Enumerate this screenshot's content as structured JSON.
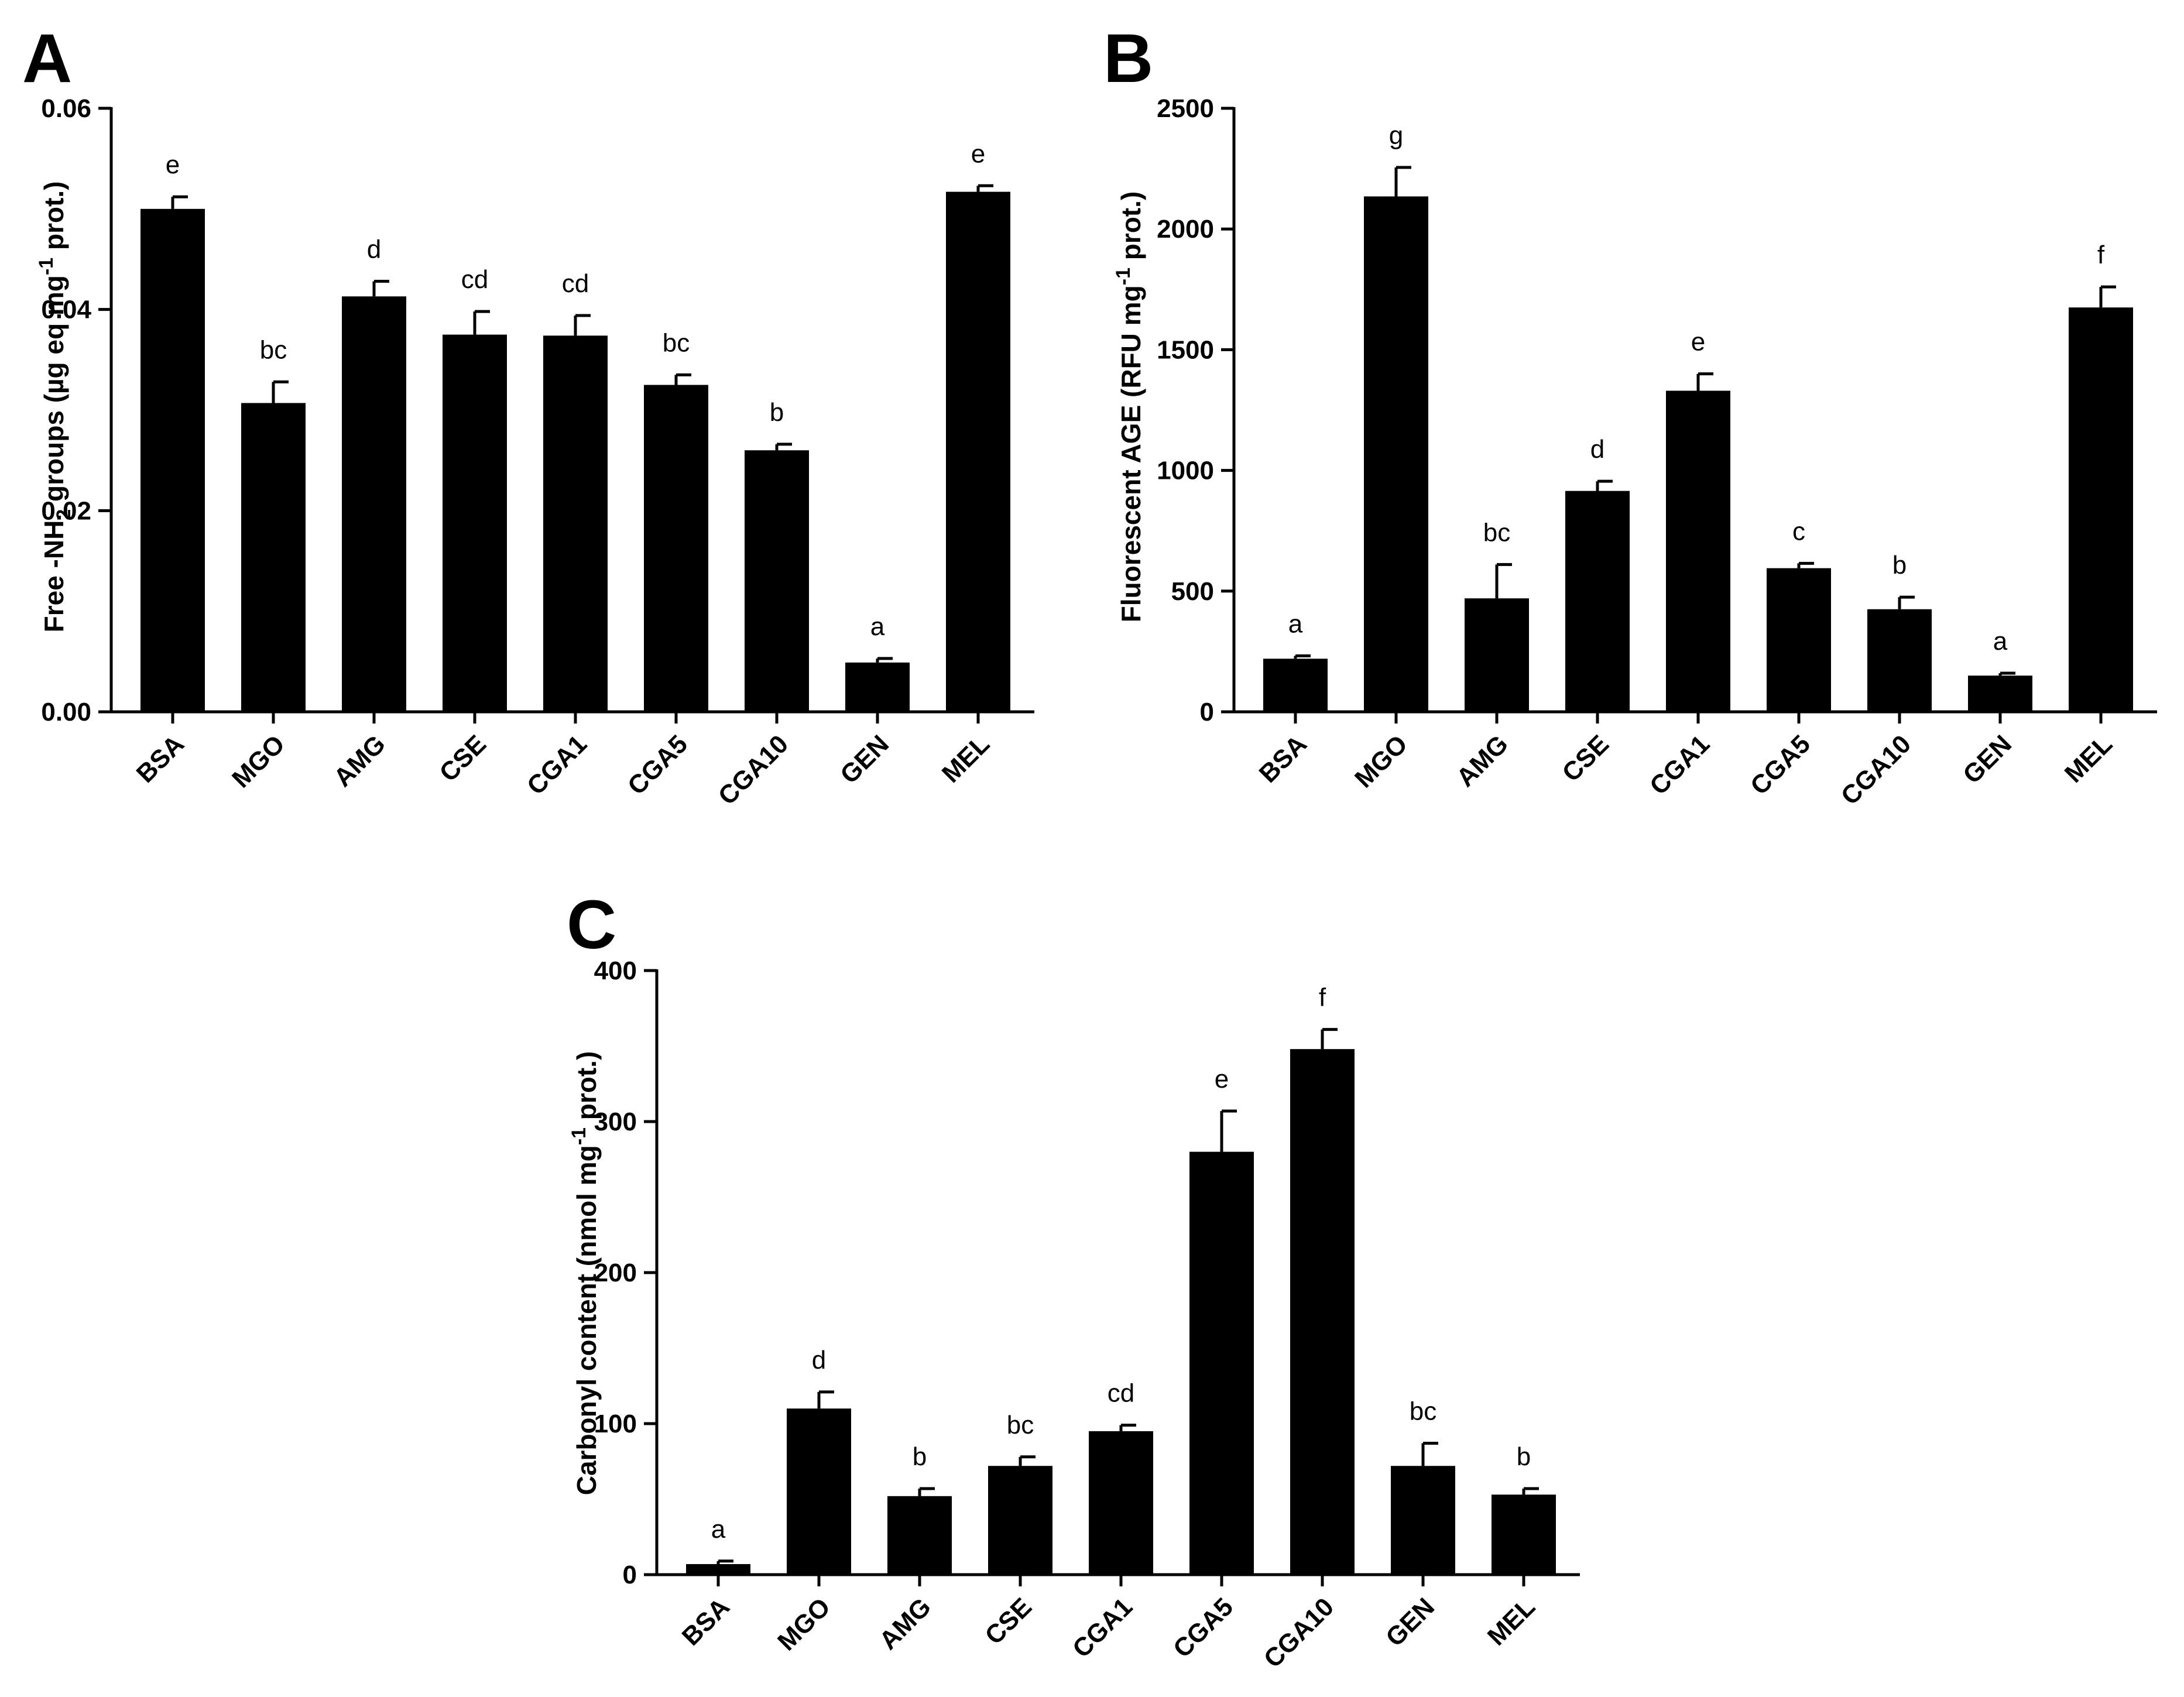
{
  "chart_data": [
    {
      "panel": "A",
      "type": "bar",
      "title": "",
      "ylabel_parts": [
        "Free -NH",
        "2",
        " groups (µg eq mg",
        "-1",
        " prot.)"
      ],
      "xlabel": "",
      "ylim": [
        0,
        0.06
      ],
      "yticks": [
        "0.00",
        "0.02",
        "0.04",
        "0.06"
      ],
      "categories": [
        "BSA",
        "MGO",
        "AMG",
        "CSE",
        "CGA1",
        "CGA5",
        "CGA10",
        "GEN",
        "MEL"
      ],
      "values": [
        0.05,
        0.0307,
        0.0413,
        0.0375,
        0.0374,
        0.0325,
        0.026,
        0.0049,
        0.0517
      ],
      "errors": [
        0.0012,
        0.0021,
        0.0015,
        0.0023,
        0.002,
        0.001,
        0.0006,
        0.0004,
        0.0006
      ],
      "significance": [
        "e",
        "bc",
        "d",
        "cd",
        "cd",
        "bc",
        "b",
        "a",
        "e"
      ]
    },
    {
      "panel": "B",
      "type": "bar",
      "title": "",
      "ylabel_parts": [
        "Fluorescent AGE (RFU mg",
        "-1",
        " prot.)"
      ],
      "xlabel": "",
      "ylim": [
        0,
        2500
      ],
      "yticks": [
        "0",
        "500",
        "1000",
        "1500",
        "2000",
        "2500"
      ],
      "categories": [
        "BSA",
        "MGO",
        "AMG",
        "CSE",
        "CGA1",
        "CGA5",
        "CGA10",
        "GEN",
        "MEL"
      ],
      "values": [
        220,
        2135,
        470,
        915,
        1330,
        595,
        425,
        150,
        1675
      ],
      "errors": [
        12,
        120,
        140,
        40,
        70,
        20,
        50,
        10,
        85
      ],
      "significance": [
        "a",
        "g",
        "bc",
        "d",
        "e",
        "c",
        "b",
        "a",
        "f"
      ]
    },
    {
      "panel": "C",
      "type": "bar",
      "title": "",
      "ylabel_parts": [
        "Carbonyl content (nmol mg",
        "-1",
        " prot.)"
      ],
      "xlabel": "",
      "ylim": [
        0,
        400
      ],
      "yticks": [
        "0",
        "100",
        "200",
        "300",
        "400"
      ],
      "categories": [
        "BSA",
        "MGO",
        "AMG",
        "CSE",
        "CGA1",
        "CGA5",
        "CGA10",
        "GEN",
        "MEL"
      ],
      "values": [
        7,
        110,
        52,
        72,
        95,
        280,
        348,
        72,
        53
      ],
      "errors": [
        2,
        11,
        5,
        6,
        4,
        27,
        13,
        15,
        4
      ],
      "significance": [
        "a",
        "d",
        "b",
        "bc",
        "cd",
        "e",
        "f",
        "bc",
        "b"
      ]
    }
  ]
}
